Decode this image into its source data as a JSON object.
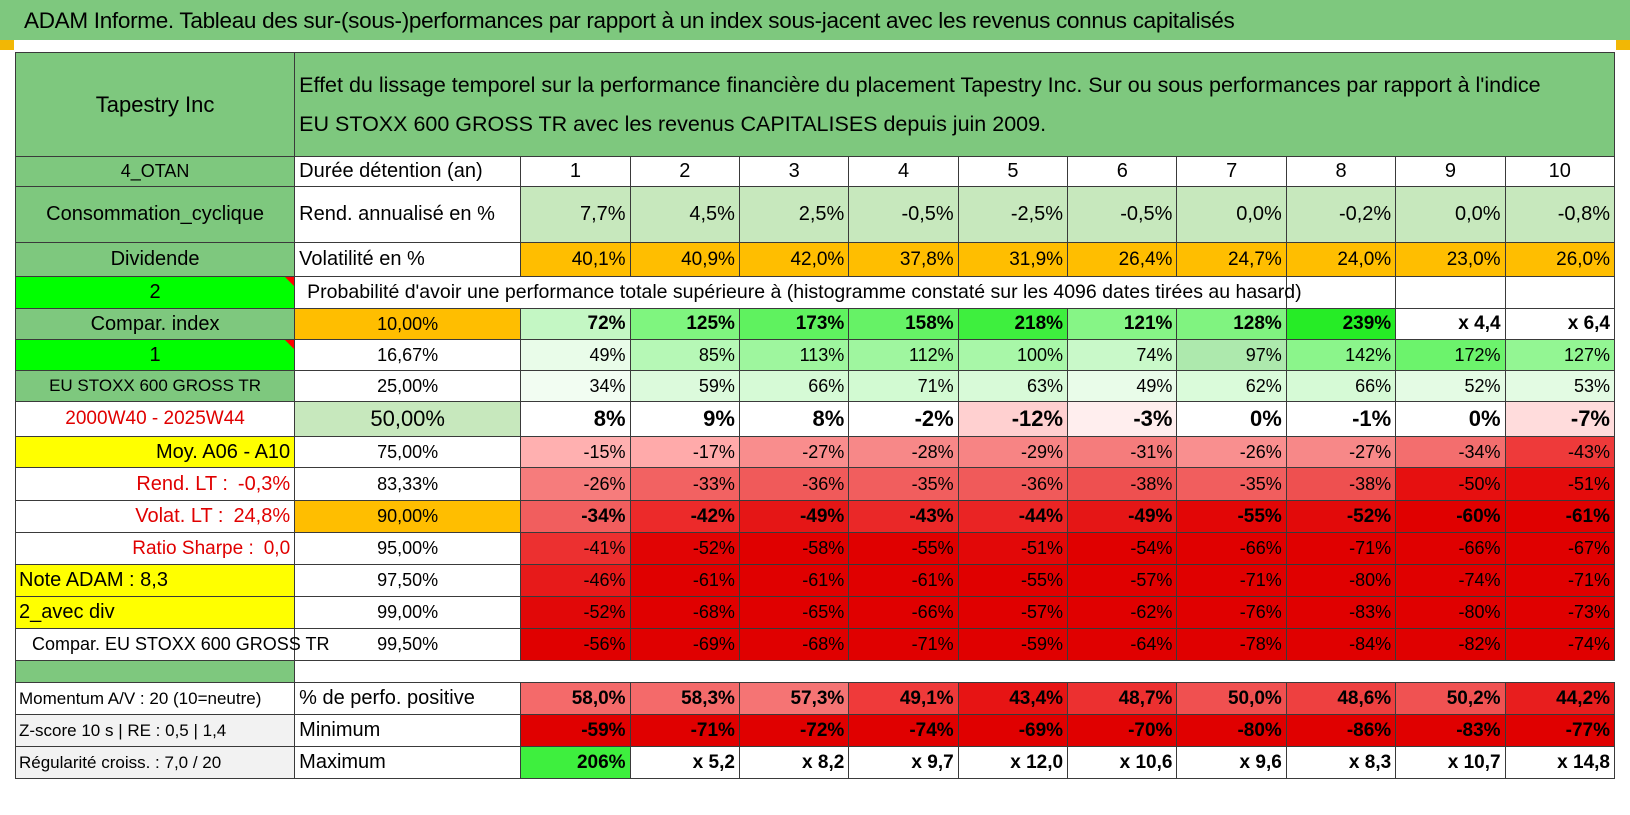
{
  "title": "ADAM Informe. Tableau des sur-(sous-)performances par rapport à un index sous-jacent avec les revenus connus capitalisés",
  "header": {
    "company": "Tapestry Inc",
    "description_line1": "Effet du lissage temporel sur la performance financière du placement Tapestry Inc. Sur ou sous performances par rapport à l'indice",
    "description_line2": "EU STOXX 600 GROSS TR avec les revenus CAPITALISES depuis juin 2009."
  },
  "rows": {
    "holding": {
      "label_left": "4_OTAN",
      "label": "Durée détention (an)",
      "values": [
        "1",
        "2",
        "3",
        "4",
        "5",
        "6",
        "7",
        "8",
        "9",
        "10"
      ]
    },
    "rendement": {
      "label_left": "Consommation_cyclique",
      "label": "Rend. annualisé en %",
      "values": [
        "7,7%",
        "4,5%",
        "2,5%",
        "-0,5%",
        "-2,5%",
        "-0,5%",
        "0,0%",
        "-0,2%",
        "0,0%",
        "-0,8%"
      ]
    },
    "volatilite": {
      "label_left": "Dividende",
      "label": "Volatilité en %",
      "values": [
        "40,1%",
        "40,9%",
        "42,0%",
        "37,8%",
        "31,9%",
        "26,4%",
        "24,7%",
        "24,0%",
        "23,0%",
        "26,0%"
      ]
    },
    "proba": {
      "label_left": "2",
      "text": "Probabilité d'avoir une performance totale supérieure à (histogramme constaté sur les 4096 dates tirées au hasard)"
    }
  },
  "prob_rows": [
    {
      "left": "Compar. index",
      "pct": "10,00%",
      "values": [
        "72%",
        "125%",
        "173%",
        "158%",
        "218%",
        "121%",
        "128%",
        "239%",
        "x 4,4",
        "x 6,4"
      ]
    },
    {
      "left": "1",
      "pct": "16,67%",
      "values": [
        "49%",
        "85%",
        "113%",
        "112%",
        "100%",
        "74%",
        "97%",
        "142%",
        "172%",
        "127%"
      ]
    },
    {
      "left": "EU STOXX 600 GROSS TR",
      "pct": "25,00%",
      "values": [
        "34%",
        "59%",
        "66%",
        "71%",
        "63%",
        "49%",
        "62%",
        "66%",
        "52%",
        "53%"
      ]
    },
    {
      "left": "2000W40 - 2025W44",
      "pct": "50,00%",
      "values": [
        "8%",
        "9%",
        "8%",
        "-2%",
        "-12%",
        "-3%",
        "0%",
        "-1%",
        "0%",
        "-7%"
      ]
    },
    {
      "left": "Moy. A06 - A10",
      "pct": "75,00%",
      "values": [
        "-15%",
        "-17%",
        "-27%",
        "-28%",
        "-29%",
        "-31%",
        "-26%",
        "-27%",
        "-34%",
        "-43%"
      ]
    },
    {
      "left_label": "Rend. LT :",
      "left_value": "-0,3%",
      "pct": "83,33%",
      "values": [
        "-26%",
        "-33%",
        "-36%",
        "-35%",
        "-36%",
        "-38%",
        "-35%",
        "-38%",
        "-50%",
        "-51%"
      ]
    },
    {
      "left_label": "Volat. LT :",
      "left_value": "24,8%",
      "pct": "90,00%",
      "values": [
        "-34%",
        "-42%",
        "-49%",
        "-43%",
        "-44%",
        "-49%",
        "-55%",
        "-52%",
        "-60%",
        "-61%"
      ]
    },
    {
      "left_label": "Ratio Sharpe :",
      "left_value": "0,0",
      "pct": "95,00%",
      "values": [
        "-41%",
        "-52%",
        "-58%",
        "-55%",
        "-51%",
        "-54%",
        "-66%",
        "-71%",
        "-66%",
        "-67%"
      ]
    },
    {
      "left": "Note ADAM : 8,3",
      "pct": "97,50%",
      "values": [
        "-46%",
        "-61%",
        "-61%",
        "-61%",
        "-55%",
        "-57%",
        "-71%",
        "-80%",
        "-74%",
        "-71%"
      ]
    },
    {
      "left": "2_avec div",
      "pct": "99,00%",
      "values": [
        "-52%",
        "-68%",
        "-65%",
        "-66%",
        "-57%",
        "-62%",
        "-76%",
        "-83%",
        "-80%",
        "-73%"
      ]
    },
    {
      "left": "Compar. EU STOXX 600 GROSS TR",
      "pct": "99,50%",
      "values": [
        "-56%",
        "-69%",
        "-68%",
        "-71%",
        "-59%",
        "-64%",
        "-78%",
        "-84%",
        "-82%",
        "-74%"
      ]
    }
  ],
  "bottom_rows": [
    {
      "left": "Momentum A/V : 20 (10=neutre)",
      "label": "% de perfo. positive",
      "values": [
        "58,0%",
        "58,3%",
        "57,3%",
        "49,1%",
        "43,4%",
        "48,7%",
        "50,0%",
        "48,6%",
        "50,2%",
        "44,2%"
      ]
    },
    {
      "left": "Z-score 10 s | RE : 0,5 | 1,4",
      "label": "Minimum",
      "values": [
        "-59%",
        "-71%",
        "-72%",
        "-74%",
        "-69%",
        "-70%",
        "-80%",
        "-86%",
        "-83%",
        "-77%"
      ]
    },
    {
      "left": "Régularité croiss. : 7,0 / 20",
      "label": "Maximum",
      "values": [
        "206%",
        "x 5,2",
        "x 8,2",
        "x 9,7",
        "x 12,0",
        "x 10,6",
        "x 9,6",
        "x 8,3",
        "x 10,7",
        "x 14,8"
      ]
    }
  ],
  "colors": {
    "prob_rows": [
      [
        "#c4f7c4",
        "#7ff57f",
        "#5ff25f",
        "#66f266",
        "#3eef3e",
        "#86f586",
        "#80f380",
        "#26ec26",
        "#ffffff",
        "#ffffff"
      ],
      [
        "#e9fce9",
        "#b6f8b6",
        "#9ef69e",
        "#9ff69f",
        "#a8f7a8",
        "#c9f9c9",
        "#ade9ad",
        "#8bf58b",
        "#6cf36c",
        "#93f693"
      ],
      [
        "#f2fdf2",
        "#dcfadc",
        "#d6fad6",
        "#d2fad2",
        "#d8fad8",
        "#e9fce9",
        "#dafbda",
        "#d6fad6",
        "#e4fbe4",
        "#e3fbe3"
      ],
      [
        "#ffffff",
        "#ffffff",
        "#ffffff",
        "#ffffff",
        "#ffd0d0",
        "#ffeeee",
        "#ffffff",
        "#ffffff",
        "#ffffff",
        "#ffdcdc"
      ],
      [
        "#ffb0b0",
        "#ffaaaa",
        "#f98d8d",
        "#f78888",
        "#f78484",
        "#f57c7c",
        "#f98f8f",
        "#f78888",
        "#f36e6e",
        "#ee3a3a"
      ],
      [
        "#f67c7c",
        "#f26262",
        "#f05a5a",
        "#f15e5e",
        "#f05a5a",
        "#ee5050",
        "#f15e5e",
        "#ee5050",
        "#e61010",
        "#e40c0c"
      ],
      [
        "#f15e5e",
        "#ec2a2a",
        "#e51616",
        "#ea2828",
        "#ea2424",
        "#e51616",
        "#e20606",
        "#e20a0a",
        "#e00000",
        "#e00000"
      ],
      [
        "#ec3030",
        "#e10404",
        "#e00000",
        "#e00000",
        "#e20808",
        "#e00000",
        "#e00000",
        "#e00000",
        "#e00000",
        "#e00000"
      ],
      [
        "#e71a1a",
        "#e00000",
        "#e00000",
        "#e00000",
        "#e00000",
        "#e00000",
        "#e00000",
        "#e00000",
        "#e00000",
        "#e00000"
      ],
      [
        "#e10808",
        "#e00000",
        "#e00000",
        "#e00000",
        "#e00000",
        "#e00000",
        "#e00000",
        "#e00000",
        "#e00000",
        "#e00000"
      ],
      [
        "#e00000",
        "#e00000",
        "#e00000",
        "#e00000",
        "#e00000",
        "#e00000",
        "#e00000",
        "#e00000",
        "#e00000",
        "#e00000"
      ]
    ],
    "bottom_rows": [
      [
        "#f46a6a",
        "#f46a6a",
        "#f57474",
        "#ef3a3a",
        "#e71414",
        "#ec3030",
        "#f05050",
        "#ee4040",
        "#f05252",
        "#e81e1e"
      ],
      [
        "#e00000",
        "#e00000",
        "#e00000",
        "#e00000",
        "#e00000",
        "#e00000",
        "#e00000",
        "#e00000",
        "#e00000",
        "#e00000"
      ],
      [
        "#3eef3e",
        "#ffffff",
        "#ffffff",
        "#ffffff",
        "#ffffff",
        "#ffffff",
        "#ffffff",
        "#ffffff",
        "#ffffff",
        "#ffffff"
      ]
    ]
  }
}
